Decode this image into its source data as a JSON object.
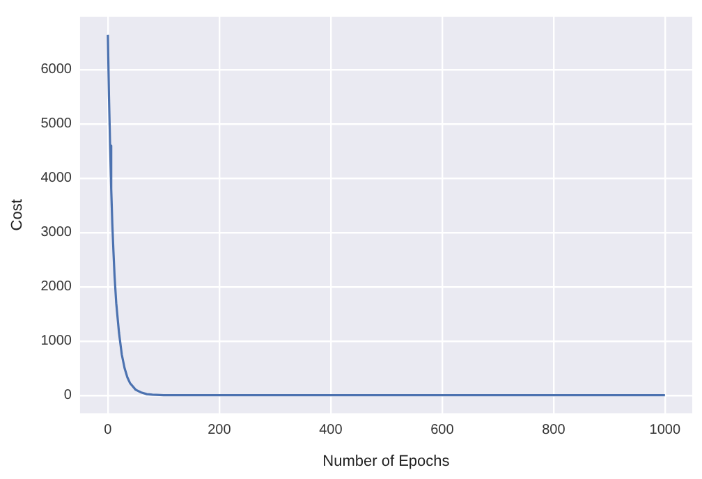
{
  "chart_data": {
    "type": "line",
    "xlabel": "Number of Epochs",
    "ylabel": "Cost",
    "series": [
      {
        "color": "#4c72b0",
        "x": [
          0,
          2,
          4,
          6,
          8,
          10,
          12,
          15,
          20,
          25,
          30,
          35,
          40,
          50,
          60,
          70,
          80,
          100,
          150,
          200,
          400,
          600,
          800,
          1000
        ],
        "values": [
          6640,
          5500,
          4600,
          3800,
          3150,
          2650,
          2200,
          1700,
          1150,
          750,
          500,
          330,
          220,
          100,
          50,
          20,
          10,
          0,
          0,
          0,
          0,
          0,
          0,
          0
        ]
      }
    ],
    "xlim": [
      -50,
      1049
    ],
    "xticks": [
      0,
      200,
      400,
      600,
      800,
      1000
    ],
    "ylim": [
      -332,
      6972
    ],
    "yticks": [
      0,
      1000,
      2000,
      3000,
      4000,
      5000,
      6000
    ],
    "grid": true,
    "legend": false,
    "marker": "none",
    "line_style": "solid"
  }
}
